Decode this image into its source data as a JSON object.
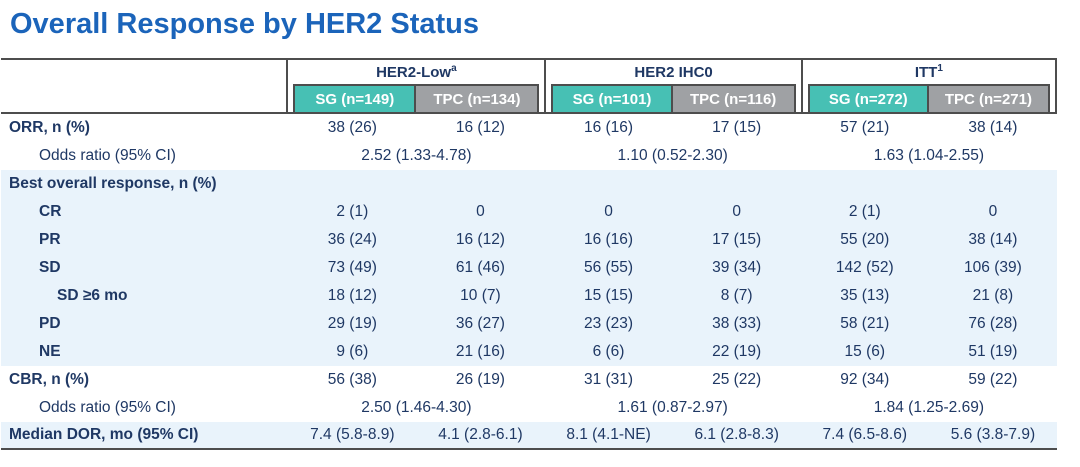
{
  "title": "Overall Response by HER2 Status",
  "colors": {
    "title_blue": "#1b64ba",
    "text_navy": "#1f3864",
    "sg_teal": "#47c0b4",
    "tpc_gray": "#9fa1a4",
    "border_dark": "#4d4d4d",
    "row_tint_blue": "#e9f3fb"
  },
  "table": {
    "groups": [
      {
        "label": "HER2-Low",
        "sup": "a"
      },
      {
        "label": "HER2 IHC0",
        "sup": ""
      },
      {
        "label": "ITT",
        "sup": "1"
      }
    ],
    "subheaders": [
      "SG (n=149)",
      "TPC (n=134)",
      "SG (n=101)",
      "TPC (n=116)",
      "SG (n=272)",
      "TPC (n=271)"
    ],
    "rows": [
      {
        "label": "ORR, n (%)",
        "bold": true,
        "indent": 0,
        "tint": false,
        "span": false,
        "cells": [
          "38 (26)",
          "16 (12)",
          "16 (16)",
          "17 (15)",
          "57 (21)",
          "38 (14)"
        ]
      },
      {
        "label": "Odds ratio (95% CI)",
        "bold": false,
        "indent": 1,
        "tint": false,
        "span": true,
        "cells": [
          "2.52 (1.33-4.78)",
          "1.10 (0.52-2.30)",
          "1.63 (1.04-2.55)"
        ]
      },
      {
        "label": "Best overall response, n (%)",
        "bold": true,
        "indent": 0,
        "tint": true,
        "span": false,
        "cells": [
          "",
          "",
          "",
          "",
          "",
          ""
        ]
      },
      {
        "label": "CR",
        "bold": true,
        "indent": 1,
        "tint": true,
        "span": false,
        "cells": [
          "2 (1)",
          "0",
          "0",
          "0",
          "2 (1)",
          "0"
        ]
      },
      {
        "label": "PR",
        "bold": true,
        "indent": 1,
        "tint": true,
        "span": false,
        "cells": [
          "36 (24)",
          "16 (12)",
          "16 (16)",
          "17 (15)",
          "55 (20)",
          "38 (14)"
        ]
      },
      {
        "label": "SD",
        "bold": true,
        "indent": 1,
        "tint": true,
        "span": false,
        "cells": [
          "73 (49)",
          "61 (46)",
          "56 (55)",
          "39 (34)",
          "142 (52)",
          "106 (39)"
        ]
      },
      {
        "label": "SD ≥6 mo",
        "bold": true,
        "indent": 2,
        "tint": true,
        "span": false,
        "cells": [
          "18 (12)",
          "10 (7)",
          "15 (15)",
          "8 (7)",
          "35 (13)",
          "21 (8)"
        ]
      },
      {
        "label": "PD",
        "bold": true,
        "indent": 1,
        "tint": true,
        "span": false,
        "cells": [
          "29 (19)",
          "36 (27)",
          "23 (23)",
          "38 (33)",
          "58 (21)",
          "76 (28)"
        ]
      },
      {
        "label": "NE",
        "bold": true,
        "indent": 1,
        "tint": true,
        "span": false,
        "cells": [
          "9 (6)",
          "21 (16)",
          "6 (6)",
          "22 (19)",
          "15 (6)",
          "51 (19)"
        ]
      },
      {
        "label": "CBR, n (%)",
        "bold": true,
        "indent": 0,
        "tint": false,
        "span": false,
        "cells": [
          "56 (38)",
          "26 (19)",
          "31 (31)",
          "25 (22)",
          "92 (34)",
          "59 (22)"
        ]
      },
      {
        "label": "Odds ratio (95% CI)",
        "bold": false,
        "indent": 1,
        "tint": false,
        "span": true,
        "cells": [
          "2.50 (1.46-4.30)",
          "1.61 (0.87-2.97)",
          "1.84 (1.25-2.69)"
        ]
      },
      {
        "label": "Median DOR, mo (95% CI)",
        "bold": true,
        "indent": 0,
        "tint": true,
        "span": false,
        "cells": [
          "7.4 (5.8-8.9)",
          "4.1 (2.8-6.1)",
          "8.1 (4.1-NE)",
          "6.1 (2.8-8.3)",
          "7.4 (6.5-8.6)",
          "5.6 (3.8-7.9)"
        ]
      }
    ]
  }
}
